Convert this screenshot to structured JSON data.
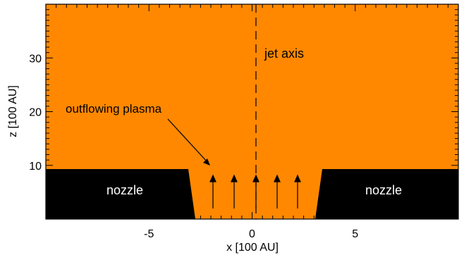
{
  "figure": {
    "xlabel": "x [100 AU]",
    "ylabel": "z [100 AU]",
    "xlim": [
      -10,
      10
    ],
    "zlim": [
      0,
      40
    ],
    "x_ticks": [
      {
        "value": -5,
        "label": "-5"
      },
      {
        "value": 0,
        "label": "0"
      },
      {
        "value": 5,
        "label": "5"
      }
    ],
    "z_ticks": [
      {
        "value": 10,
        "label": "10"
      },
      {
        "value": 20,
        "label": "20"
      },
      {
        "value": 30,
        "label": "30"
      }
    ],
    "labels": {
      "jet_axis": "jet axis",
      "outflowing_plasma": "outflowing plasma",
      "nozzle_left": "nozzle",
      "nozzle_right": "nozzle"
    },
    "colors": {
      "plasma_fill": "#ff8800",
      "nozzle_fill": "#000000",
      "frame": "#000000"
    }
  }
}
